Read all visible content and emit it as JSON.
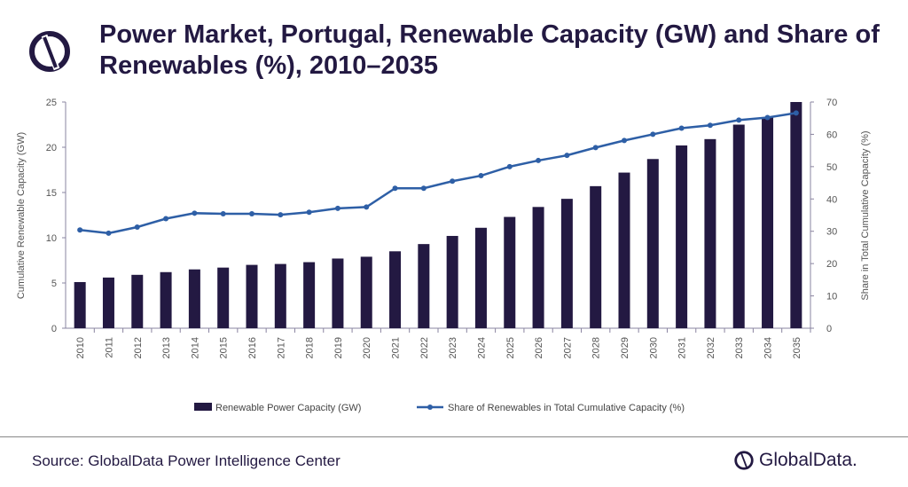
{
  "title": "Power Market, Portugal, Renewable Capacity (GW) and Share of Renewables (%), 2010–2035",
  "source": "Source: GlobalData Power Intelligence Center",
  "brand": "GlobalData.",
  "colors": {
    "bar": "#231942",
    "line": "#2e5fa6",
    "title": "#231942"
  },
  "chart_data": {
    "type": "bar+line",
    "title": "Power Market, Portugal, Renewable Capacity (GW) and Share of Renewables (%), 2010–2035",
    "categories": [
      "2010",
      "2011",
      "2012",
      "2013",
      "2014",
      "2015",
      "2016",
      "2017",
      "2018",
      "2019",
      "2020",
      "2021",
      "2022",
      "2023",
      "2024",
      "2025",
      "2026",
      "2027",
      "2028",
      "2029",
      "2030",
      "2031",
      "2032",
      "2033",
      "2034",
      "2035"
    ],
    "ylabel": "Cumulative  Renewable Capacity (GW)",
    "y2label": "Share in Total Cumulative Capacity (%)",
    "ylim": [
      0,
      25
    ],
    "yticks": [
      0,
      5,
      10,
      15,
      20,
      25
    ],
    "y2lim": [
      0,
      70
    ],
    "y2ticks": [
      0,
      10,
      20,
      30,
      40,
      50,
      60,
      70
    ],
    "legend": "bottom",
    "grid": false,
    "series": [
      {
        "name": "Renewable Power Capacity (GW)",
        "type": "bar",
        "axis": "left",
        "values": [
          5.1,
          5.6,
          5.9,
          6.2,
          6.5,
          6.7,
          7.0,
          7.1,
          7.3,
          7.7,
          7.9,
          8.5,
          9.3,
          10.2,
          11.1,
          12.3,
          13.4,
          14.3,
          15.7,
          17.2,
          18.7,
          20.2,
          20.9,
          22.5,
          23.3,
          25.0
        ]
      },
      {
        "name": "Share of Renewables in Total Cumulative Capacity (%)",
        "type": "line",
        "axis": "right",
        "values": [
          30.4,
          29.4,
          31.3,
          33.9,
          35.6,
          35.4,
          35.4,
          35.1,
          35.9,
          37.1,
          37.5,
          43.3,
          43.3,
          45.5,
          47.2,
          50.0,
          51.9,
          53.5,
          55.9,
          58.1,
          60.0,
          61.9,
          62.8,
          64.4,
          65.2,
          66.6
        ]
      }
    ]
  }
}
